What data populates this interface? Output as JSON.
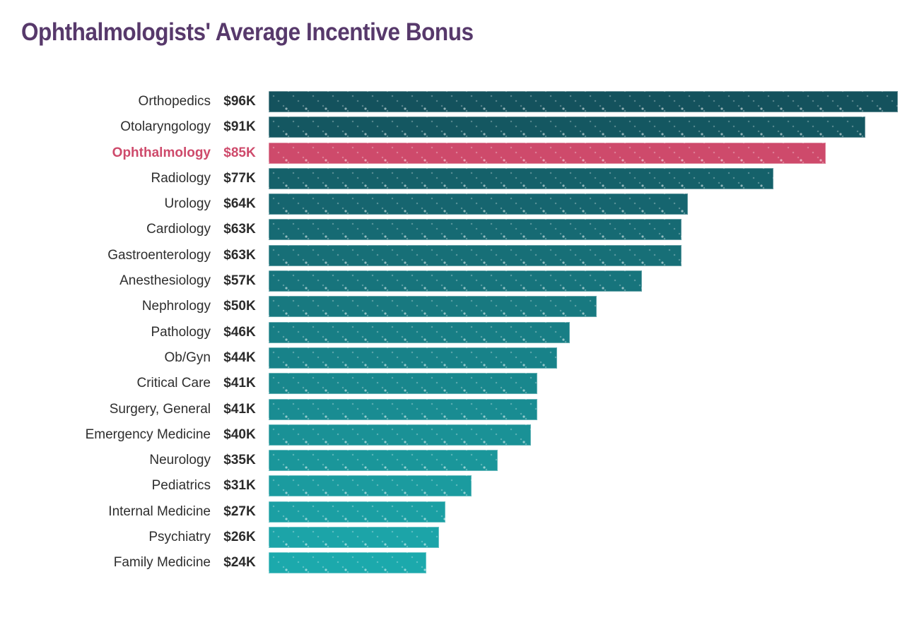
{
  "chart_data": {
    "type": "bar",
    "orientation": "horizontal",
    "title": "Ophthalmologists' Average Incentive Bonus",
    "categories": [
      "Orthopedics",
      "Otolaryngology",
      "Ophthalmology",
      "Radiology",
      "Urology",
      "Cardiology",
      "Gastroenterology",
      "Anesthesiology",
      "Nephrology",
      "Pathology",
      "Ob/Gyn",
      "Critical Care",
      "Surgery, General",
      "Emergency Medicine",
      "Neurology",
      "Pediatrics",
      "Internal Medicine",
      "Psychiatry",
      "Family Medicine"
    ],
    "values": [
      96,
      91,
      85,
      77,
      64,
      63,
      63,
      57,
      50,
      46,
      44,
      41,
      41,
      40,
      35,
      31,
      27,
      26,
      24
    ],
    "value_labels": [
      "$96K",
      "$91K",
      "$85K",
      "$77K",
      "$64K",
      "$63K",
      "$63K",
      "$57K",
      "$50K",
      "$46K",
      "$44K",
      "$41K",
      "$41K",
      "$40K",
      "$35K",
      "$31K",
      "$27K",
      "$26K",
      "$24K"
    ],
    "unit": "USD thousands per year",
    "xlim": [
      0,
      96
    ],
    "grid": false,
    "legend": null,
    "highlight_category": "Ophthalmology",
    "highlight_index": 2,
    "colors": {
      "bar_gradient_top": "#14525D",
      "bar_gradient_bottom": "#1CA9AC",
      "highlight_bar": "#CE4A6B",
      "highlight_text": "#CE4A6B",
      "title_text": "#57396B",
      "label_text": "#2E2E2E"
    }
  }
}
